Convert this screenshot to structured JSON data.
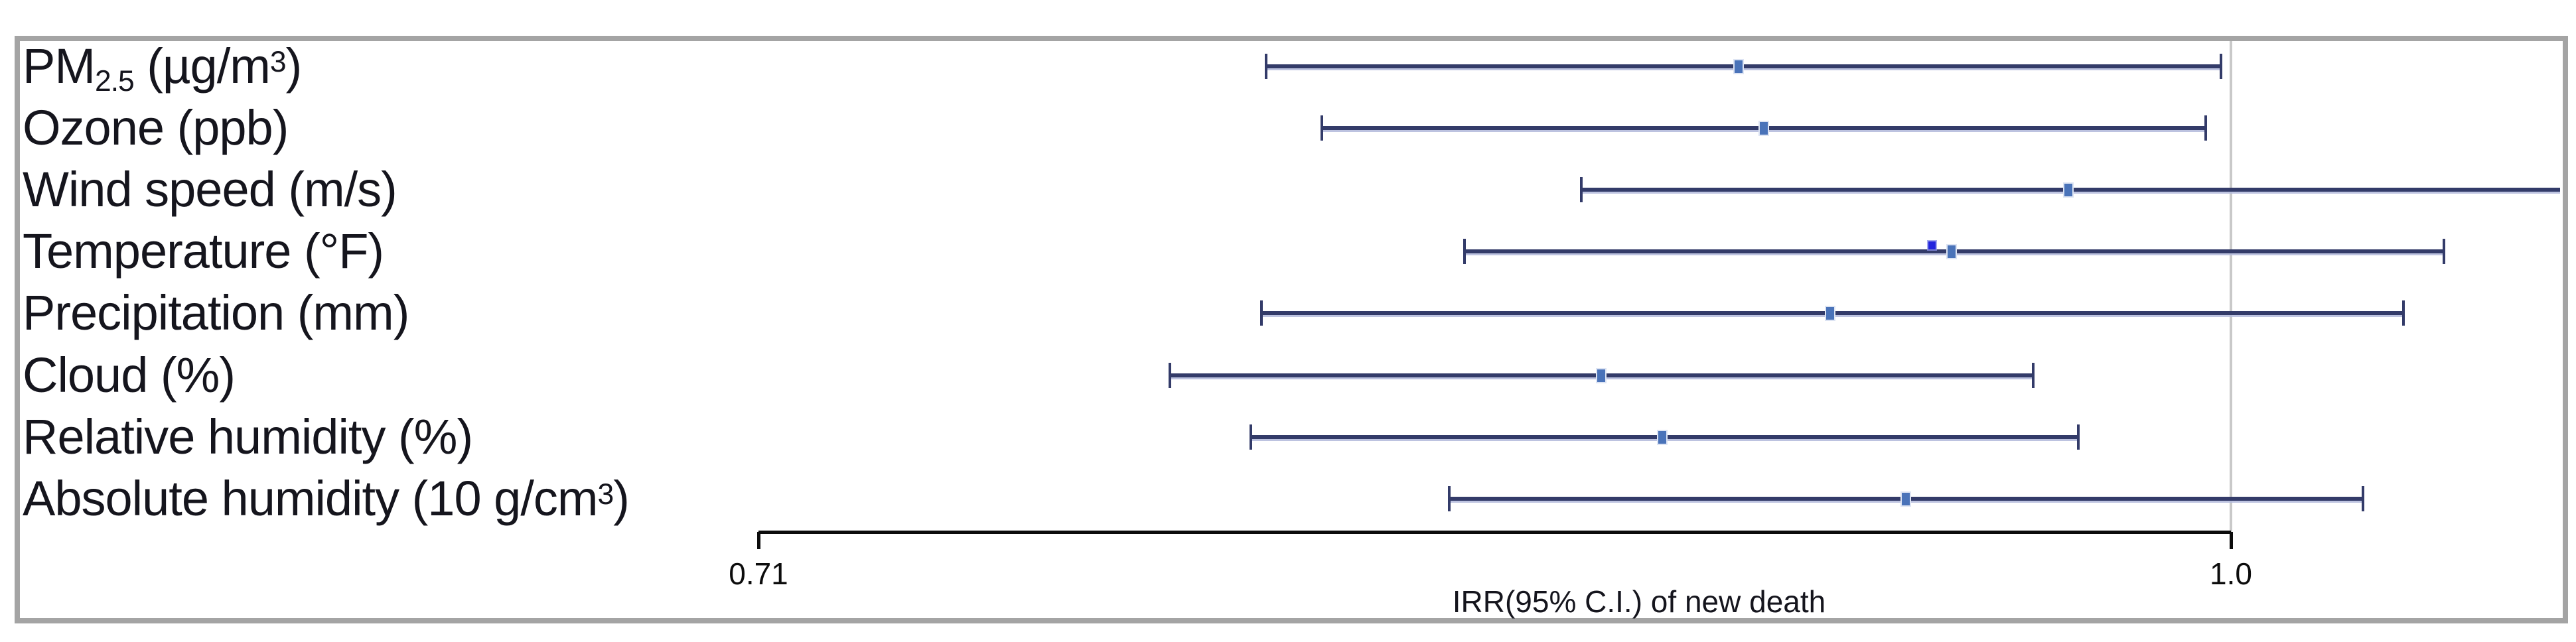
{
  "chart_data": {
    "type": "forest",
    "title": "",
    "xlabel": "IRR(95% C.I.) of new death",
    "x_ticks": [
      {
        "value": 0.71,
        "label": "0.71"
      },
      {
        "value": 1.0,
        "label": "1.0"
      }
    ],
    "reference_line_value": 1.0,
    "x_axis_range": [
      0.71,
      1.0
    ],
    "x_plot_visible_max": 1.065,
    "grid": "off",
    "rows": [
      {
        "label": "PM2.5 (µg/m³)",
        "label_segments": [
          {
            "t": "PM"
          },
          {
            "t": "2.5",
            "s": "sub"
          },
          {
            "t": " (µg/m"
          },
          {
            "t": "3",
            "s": "sup"
          },
          {
            "t": ")"
          }
        ],
        "irr": 0.903,
        "ci_low": 0.81,
        "ci_high": 0.998,
        "ci_high_clipped": false
      },
      {
        "label": "Ozone (ppb)",
        "label_segments": [
          {
            "t": "Ozone (ppb)"
          }
        ],
        "irr": 0.908,
        "ci_low": 0.821,
        "ci_high": 0.995,
        "ci_high_clipped": false
      },
      {
        "label": "Wind speed (m/s)",
        "label_segments": [
          {
            "t": "Wind speed (m/s)"
          }
        ],
        "irr": 0.968,
        "ci_low": 0.872,
        "ci_high": 1.075,
        "ci_high_clipped": true
      },
      {
        "label": "Temperature (°F)",
        "label_segments": [
          {
            "t": "Temperature (°F)"
          }
        ],
        "irr": 0.945,
        "ci_low": 0.849,
        "ci_high": 1.042,
        "ci_high_clipped": false,
        "extra_point": 0.941
      },
      {
        "label": "Precipitation (mm)",
        "label_segments": [
          {
            "t": "Precipitation (mm)"
          }
        ],
        "irr": 0.921,
        "ci_low": 0.809,
        "ci_high": 1.034,
        "ci_high_clipped": false
      },
      {
        "label": "Cloud (%)",
        "label_segments": [
          {
            "t": "Cloud (%)"
          }
        ],
        "irr": 0.876,
        "ci_low": 0.791,
        "ci_high": 0.961,
        "ci_high_clipped": false
      },
      {
        "label": "Relative humidity (%)",
        "label_segments": [
          {
            "t": "Relative humidity (%)"
          }
        ],
        "irr": 0.888,
        "ci_low": 0.807,
        "ci_high": 0.97,
        "ci_high_clipped": false
      },
      {
        "label": "Absolute humidity (10 g/cm³)",
        "label_segments": [
          {
            "t": "Absolute humidity (10 g/cm"
          },
          {
            "t": "3",
            "s": "sup"
          },
          {
            "t": ")"
          }
        ],
        "irr": 0.936,
        "ci_low": 0.846,
        "ci_high": 1.026,
        "ci_high_clipped": false
      }
    ],
    "colors": {
      "error_bar": "#333b69",
      "marker": "#4a73b9",
      "marker_edge": "#dde4f3",
      "extra_point": "#2224dd",
      "axis": "#0c0c0c",
      "reference_line": "#c9c9c9",
      "label_text": "#15151d",
      "frame_border": "#a4a4a4"
    }
  }
}
